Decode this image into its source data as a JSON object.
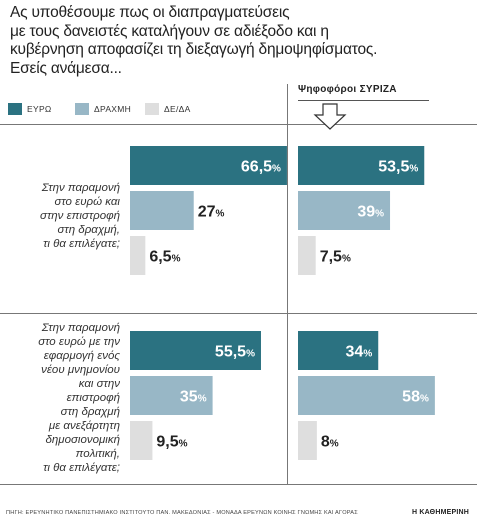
{
  "title": "Ας υποθέσουμε πως οι διαπραγματεύσεις\nμε τους δανειστές καταλήγουν σε αδιέξοδο και η\nκυβέρνηση αποφασίζει τη διεξαγωγή δημοψηφίσματος.\nΕσείς ανάμεσα...",
  "legend": [
    {
      "label": "ΕΥΡΩ",
      "color": "#2b7281"
    },
    {
      "label": "ΔΡΑΧΜΗ",
      "color": "#98b7c6"
    },
    {
      "label": "ΔΕ/ΔΑ",
      "color": "#dedede"
    }
  ],
  "syriza_label": "Ψηφοφόροι ΣΥΡΙΖΑ",
  "questions": [
    "Στην παραμονή\nστο ευρώ και\nστην επιστροφή\nστη δραχμή,\nτι θα επιλέγατε;",
    "Στην παραμονή\nστο ευρώ με την\nεφαρμογή ενός\nνέου μνημονίου\nκαι στην\nεπιστροφή\nστη δραχμή\nμε ανεξάρτητη\nδημοσιονομική\nπολιτική,\nτι θα επιλέγατε;"
  ],
  "chart_data": {
    "type": "bar",
    "orientation": "horizontal",
    "series_names": [
      "ΕΥΡΩ",
      "ΔΡΑΧΜΗ",
      "ΔΕ/ΔΑ"
    ],
    "colors": [
      "#2b7281",
      "#98b7c6",
      "#dedede"
    ],
    "groups": [
      {
        "question_index": 0,
        "all": {
          "values": [
            66.5,
            27,
            6.5
          ],
          "labels": [
            "66,5",
            "27",
            "6,5"
          ]
        },
        "syriza": {
          "values": [
            53.5,
            39,
            7.5
          ],
          "labels": [
            "53,5",
            "39",
            "7,5"
          ]
        }
      },
      {
        "question_index": 1,
        "all": {
          "values": [
            55.5,
            35,
            9.5
          ],
          "labels": [
            "55,5",
            "35",
            "9,5"
          ]
        },
        "syriza": {
          "values": [
            34,
            58,
            8
          ],
          "labels": [
            "34",
            "58",
            "8"
          ]
        }
      }
    ],
    "unit": "%"
  },
  "source": "ΠΗΓΗ: ΕΡΕΥΝΗΤΙΚΟ ΠΑΝΕΠΙΣΤΗΜΙΑΚΟ ΙΝΣΤΙΤΟΥΤΟ ΠΑΝ. ΜΑΚΕΔΟΝΙΑΣ - ΜΟΝΑΔΑ ΕΡΕΥΝΩΝ ΚΟΙΝΗΣ ΓΝΩΜΗΣ ΚΑΙ ΑΓΟΡΑΣ",
  "brand": "Η ΚΑΘΗΜΕΡΙΝΗ"
}
